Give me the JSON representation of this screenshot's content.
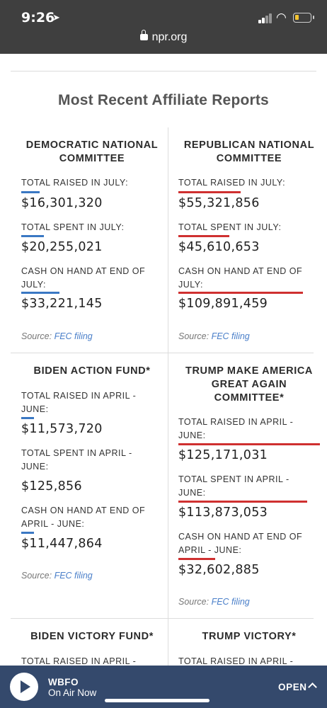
{
  "status_bar": {
    "time": "9:26"
  },
  "browser": {
    "url": "npr.org"
  },
  "page": {
    "title": "Most Recent Affiliate Reports"
  },
  "colors": {
    "dem": "#3a78c3",
    "rep": "#cf3030",
    "player": "#34496c"
  },
  "cards": {
    "dnc": {
      "name": "DEMOCRATIC NATIONAL COMMITTEE",
      "raised_label": "TOTAL RAISED IN JULY:",
      "raised": "$16,301,320",
      "raised_share": 0.13,
      "spent_label": "TOTAL SPENT IN JULY:",
      "spent": "$20,255,021",
      "spent_share": 0.16,
      "cash_label": "CASH ON HAND AT END OF JULY:",
      "cash": "$33,221,145",
      "cash_share": 0.27,
      "source_prefix": "Source:",
      "source_link": "FEC filing"
    },
    "rnc": {
      "name": "REPUBLICAN NATIONAL COMMITTEE",
      "raised_label": "TOTAL RAISED IN JULY:",
      "raised": "$55,321,856",
      "raised_share": 0.44,
      "spent_label": "TOTAL SPENT IN JULY:",
      "spent": "$45,610,653",
      "spent_share": 0.36,
      "cash_label": "CASH ON HAND AT END OF JULY:",
      "cash": "$109,891,459",
      "cash_share": 0.88,
      "source_prefix": "Source:",
      "source_link": "FEC filing"
    },
    "biden_action": {
      "name": "BIDEN ACTION FUND*",
      "raised_label": "TOTAL RAISED IN APRIL - JUNE:",
      "raised": "$11,573,720",
      "raised_share": 0.09,
      "spent_label": "TOTAL SPENT IN APRIL - JUNE:",
      "spent": "$125,856",
      "spent_share": 0.0,
      "cash_label": "CASH ON HAND AT END OF APRIL - JUNE:",
      "cash": "$11,447,864",
      "cash_share": 0.09,
      "source_prefix": "Source:",
      "source_link": "FEC filing"
    },
    "trump_maga": {
      "name": "TRUMP MAKE AMERICA GREAT AGAIN COMMITTEE*",
      "raised_label": "TOTAL RAISED IN APRIL - JUNE:",
      "raised": "$125,171,031",
      "raised_share": 1.0,
      "spent_label": "TOTAL SPENT IN APRIL - JUNE:",
      "spent": "$113,873,053",
      "spent_share": 0.91,
      "cash_label": "CASH ON HAND AT END OF APRIL - JUNE:",
      "cash": "$32,602,885",
      "cash_share": 0.26,
      "source_prefix": "Source:",
      "source_link": "FEC filing"
    },
    "biden_victory": {
      "name": "BIDEN VICTORY FUND*",
      "raised_label": "TOTAL RAISED IN APRIL -"
    },
    "trump_victory": {
      "name": "TRUMP VICTORY*",
      "raised_label": "TOTAL RAISED IN APRIL -"
    }
  },
  "player": {
    "station": "WBFO",
    "status": "On Air Now",
    "open_label": "OPEN"
  }
}
